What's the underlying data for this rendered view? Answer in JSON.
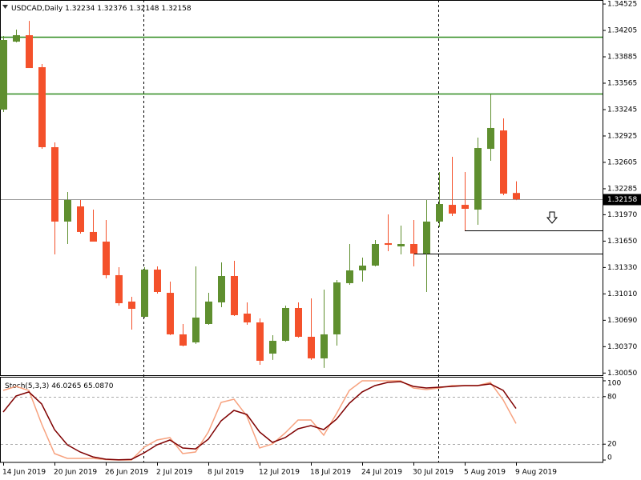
{
  "chart_data": [
    {
      "type": "candlestick",
      "title": "USDCAD,Daily",
      "categories": [
        "14 Jun 2019",
        null,
        null,
        null,
        "20 Jun 2019",
        null,
        null,
        null,
        "26 Jun 2019",
        null,
        null,
        null,
        "2 Jul 2019",
        null,
        null,
        null,
        "8 Jul 2019",
        null,
        null,
        null,
        "12 Jul 2019",
        null,
        null,
        null,
        "18 Jul 2019",
        null,
        null,
        null,
        "24 Jul 2019",
        null,
        null,
        null,
        "30 Jul 2019",
        null,
        null,
        null,
        "5 Aug 2019",
        null,
        null,
        null,
        "9 Aug 2019"
      ],
      "open": [
        1.33245,
        1.34069,
        1.34147,
        1.33759,
        1.32789,
        1.31887,
        1.32071,
        1.31761,
        1.31644,
        1.31237,
        1.30917,
        1.30732,
        1.31305,
        1.31023,
        1.30519,
        1.30422,
        1.30645,
        1.30907,
        1.31227,
        1.30771,
        1.30664,
        1.30286,
        1.30441,
        1.30839,
        1.3049,
        1.30228,
        1.30519,
        1.3114,
        1.31295,
        1.31353,
        1.31625,
        1.31586,
        1.31615,
        1.31499,
        1.31887,
        1.3209,
        1.3209,
        1.32032,
        1.32769,
        1.32992,
        1.32234
      ],
      "high": [
        1.34137,
        1.34215,
        1.34321,
        1.33798,
        1.32847,
        1.32246,
        1.32149,
        1.32032,
        1.31906,
        1.31334,
        1.30975,
        1.31334,
        1.31343,
        1.31159,
        1.30645,
        1.31343,
        1.31023,
        1.31392,
        1.31411,
        1.30907,
        1.30713,
        1.30509,
        1.30868,
        1.30907,
        1.30955,
        1.31062,
        1.31179,
        1.31615,
        1.3145,
        1.31664,
        1.31974,
        1.31838,
        1.31906,
        1.32149,
        1.32488,
        1.32672,
        1.32488,
        1.32905,
        1.33429,
        1.33138,
        1.32376
      ],
      "low": [
        1.33216,
        1.3406,
        1.33749,
        1.32769,
        1.31489,
        1.31615,
        1.31741,
        1.31644,
        1.31198,
        1.30868,
        1.30577,
        1.3072,
        1.31014,
        1.3051,
        1.30373,
        1.30403,
        1.30635,
        1.30849,
        1.30742,
        1.30635,
        1.3015,
        1.30209,
        1.3043,
        1.3048,
        1.30209,
        1.30112,
        1.30383,
        1.3112,
        1.31159,
        1.31343,
        1.31528,
        1.31489,
        1.31343,
        1.31033,
        1.31819,
        1.31955,
        1.3178,
        1.31848,
        1.32624,
        1.32207,
        1.32148
      ],
      "close": [
        1.34089,
        1.34147,
        1.33749,
        1.32789,
        1.31887,
        1.32149,
        1.31761,
        1.31644,
        1.31237,
        1.30897,
        1.30829,
        1.31305,
        1.31033,
        1.30519,
        1.30383,
        1.30723,
        1.30917,
        1.31227,
        1.30752,
        1.30664,
        1.30199,
        1.30441,
        1.30839,
        1.3049,
        1.30228,
        1.30519,
        1.31149,
        1.31295,
        1.31353,
        1.31615,
        1.31605,
        1.31615,
        1.31499,
        1.31887,
        1.321,
        1.31984,
        1.32042,
        1.32779,
        1.33022,
        1.32226,
        1.32158
      ],
      "up_color": "#5f8f2f",
      "down_color": "#f4512b",
      "ylim": [
        1.30024,
        1.34574
      ],
      "yticks": [
        1.34525,
        1.34205,
        1.33885,
        1.33565,
        1.33245,
        1.32925,
        1.32605,
        1.32285,
        {
          "value": 1.3197,
          "label": "1.31970"
        },
        {
          "value": 1.3165,
          "label": "1.31650"
        },
        {
          "value": 1.3133,
          "label": "1.31330"
        },
        {
          "value": 1.3101,
          "label": "1.31010"
        },
        {
          "value": 1.3069,
          "label": "1.30690"
        },
        {
          "value": 1.3037,
          "label": "1.30370"
        },
        {
          "value": 1.3005,
          "label": "1.30050"
        }
      ],
      "levels": [
        {
          "value": 1.34127,
          "color": "#2e8b1e"
        },
        {
          "value": 1.33439,
          "color": "#2e8b1e"
        },
        {
          "value": 1.3178,
          "color": "#000000",
          "start": 36
        },
        {
          "value": 1.31499,
          "color": "#000000",
          "start": 32
        }
      ]
    },
    {
      "type": "line",
      "title": "Stoch(5,3,3)",
      "ylim": [
        -3,
        103
      ],
      "yticks": [
        0,
        20,
        80,
        100
      ],
      "series": [
        {
          "color": "#f7a27f",
          "values": [
            87.9,
            92.9,
            87.9,
            45.5,
            8.1,
            2.0,
            2.0,
            2.0,
            0.5,
            0,
            0,
            16.2,
            25.3,
            28.3,
            8.1,
            10.1,
            35.4,
            72.7,
            76.8,
            55.6,
            15.2,
            20.2,
            34.3,
            50.5,
            50.5,
            31.3,
            58.6,
            87.9,
            100,
            100,
            100,
            100,
            90.9,
            88.9,
            90.9,
            93.9,
            93.9,
            93.9,
            98.0,
            75.8,
            46.0265
          ],
          "value_labels": [
            null,
            null,
            null,
            null,
            null,
            null,
            null,
            null,
            null,
            null,
            null,
            null,
            null,
            null,
            null,
            null,
            null,
            null,
            null,
            null,
            null,
            null,
            null,
            null,
            null,
            null,
            null,
            null,
            null,
            null,
            null,
            null,
            null,
            null,
            null,
            null,
            null,
            null,
            null,
            null,
            "46.0265"
          ]
        },
        {
          "color": "#7f0000",
          "values": [
            60.6,
            80.8,
            85.9,
            70.7,
            38.4,
            19.2,
            10.1,
            4.0,
            1.0,
            0.2,
            0.8,
            9.1,
            19.2,
            25.3,
            15.2,
            14.1,
            26.3,
            49.5,
            62.6,
            57.6,
            35.4,
            22.2,
            28.3,
            39.4,
            43.4,
            38.4,
            51.5,
            71.7,
            85.9,
            93.9,
            98.0,
            99.0,
            92.9,
            90.9,
            91.9,
            92.9,
            93.9,
            93.9,
            96.0,
            87.9,
            65.087
          ],
          "value_labels": [
            null,
            null,
            null,
            null,
            null,
            null,
            null,
            null,
            null,
            null,
            null,
            null,
            null,
            null,
            null,
            null,
            null,
            null,
            null,
            null,
            null,
            null,
            null,
            null,
            null,
            null,
            null,
            null,
            null,
            null,
            null,
            null,
            null,
            null,
            null,
            null,
            null,
            null,
            null,
            null,
            "65.0870"
          ]
        }
      ]
    }
  ]
}
